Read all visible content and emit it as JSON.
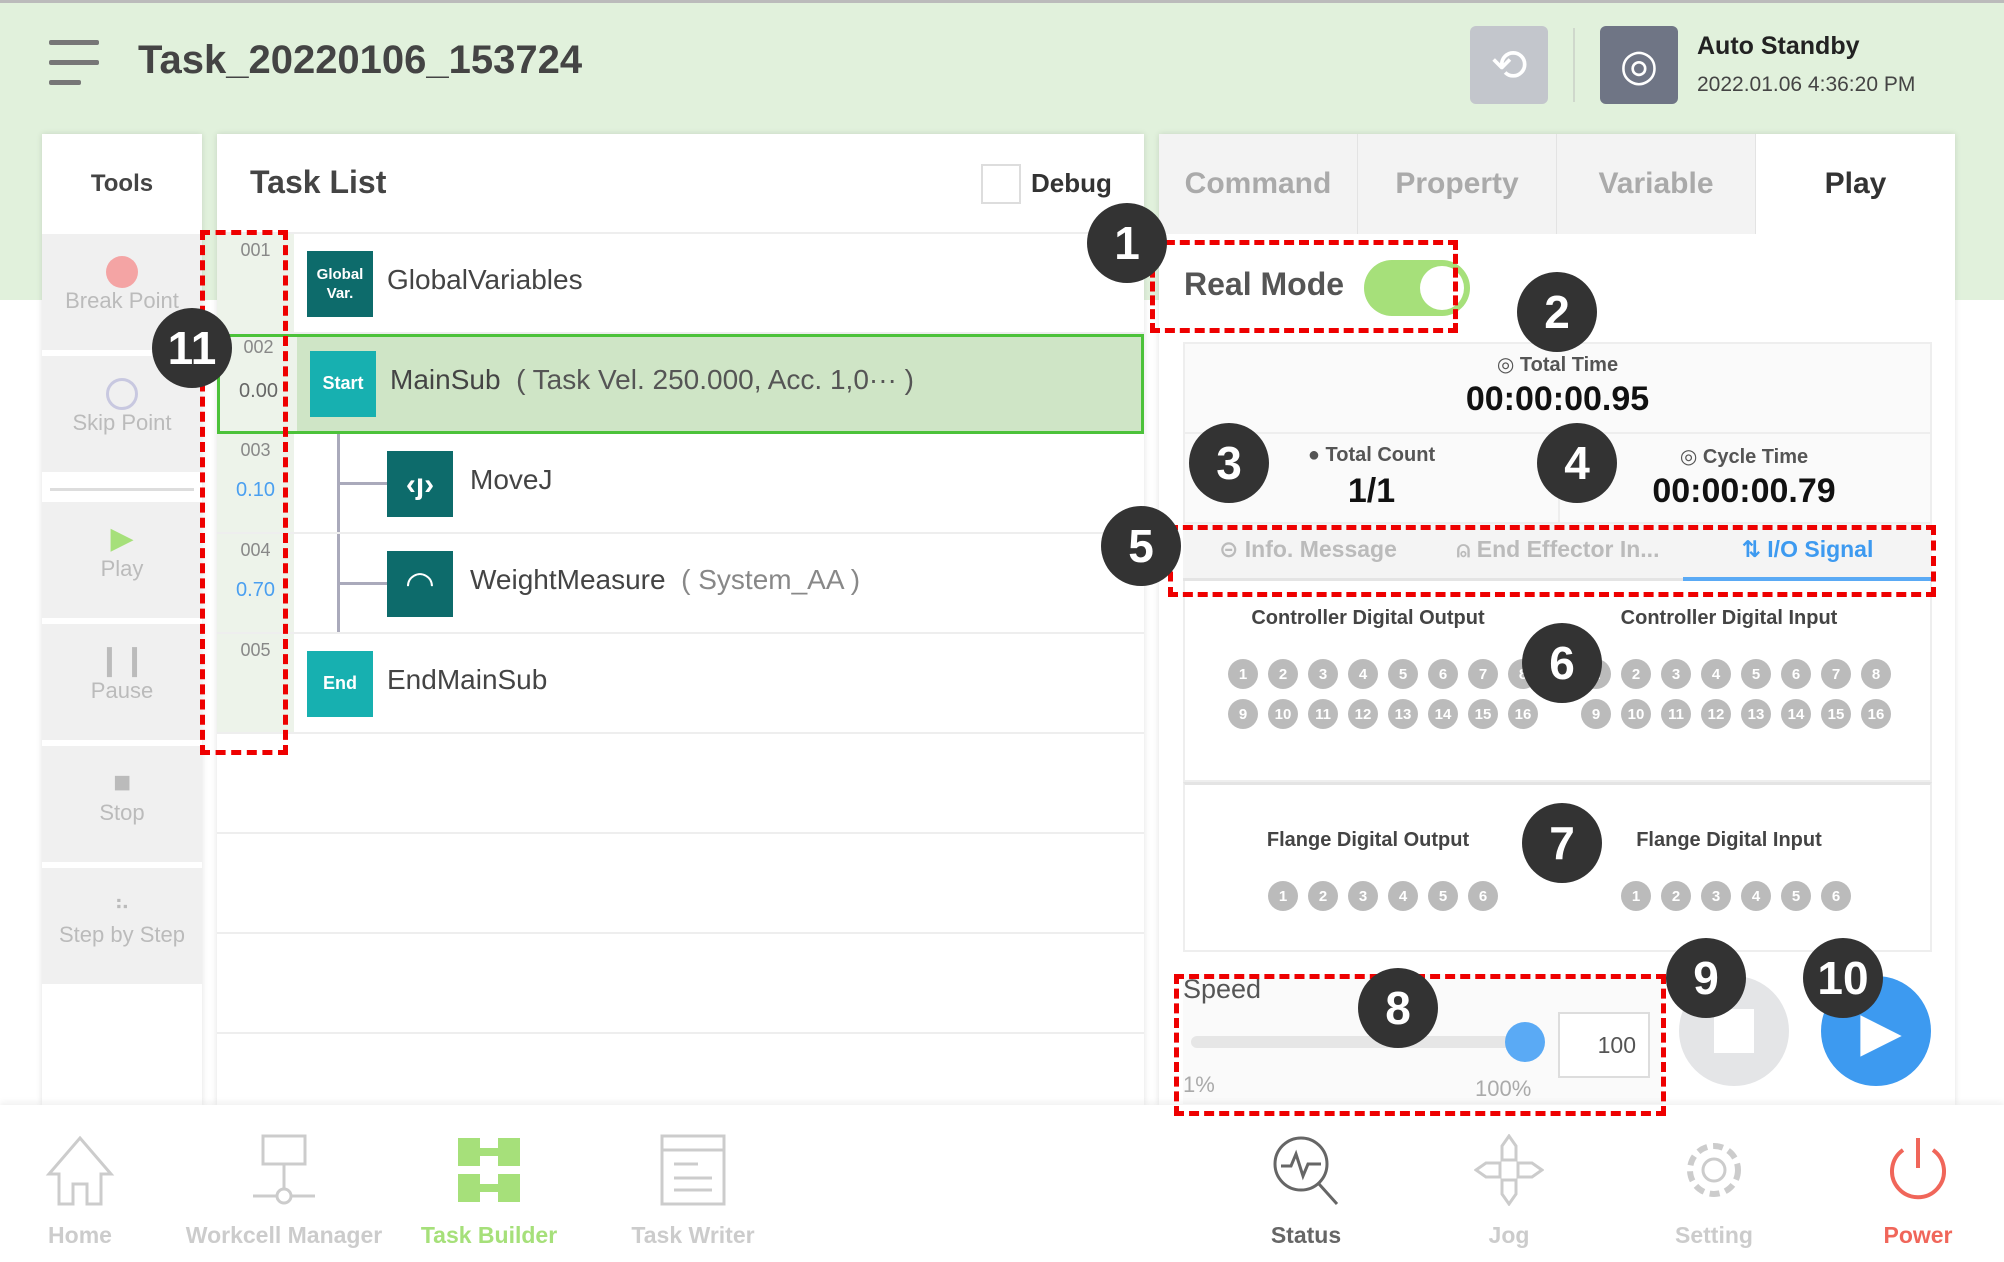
{
  "header": {
    "title": "Task_20220106_153724",
    "status": "Auto Standby",
    "datetime": "2022.01.06 4:36:20 PM"
  },
  "tools": {
    "title": "Tools",
    "items": [
      {
        "label": "Break Point"
      },
      {
        "label": "Skip Point"
      },
      {
        "label": "Play"
      },
      {
        "label": "Pause"
      },
      {
        "label": "Stop"
      },
      {
        "label": "Step by Step"
      }
    ]
  },
  "task_list": {
    "title": "Task List",
    "debug_label": "Debug",
    "debug_checked": false,
    "rows": [
      {
        "line": "001",
        "time": "",
        "icon": "Global Var.",
        "name": "GlobalVariables",
        "detail": ""
      },
      {
        "line": "002",
        "time": "0.00",
        "icon": "Start",
        "name": "MainSub",
        "detail": "( Task Vel. 250.000, Acc. 1,0··· )"
      },
      {
        "line": "003",
        "time": "0.10",
        "icon": "movej-icon",
        "name": "MoveJ",
        "detail": ""
      },
      {
        "line": "004",
        "time": "0.70",
        "icon": "gauge-icon",
        "name": "WeightMeasure",
        "detail": "( System_AA )"
      },
      {
        "line": "005",
        "time": "",
        "icon": "End",
        "name": "EndMainSub",
        "detail": ""
      }
    ]
  },
  "right": {
    "tabs": [
      "Command",
      "Property",
      "Variable",
      "Play"
    ],
    "active_tab": "Play",
    "real_mode_label": "Real Mode",
    "real_mode_on": true,
    "total_time_label": "Total Time",
    "total_time": "00:00:00.95",
    "total_count_label": "Total Count",
    "total_count": "1/1",
    "cycle_time_label": "Cycle Time",
    "cycle_time": "00:00:00.79",
    "subtabs": [
      "Info. Message",
      "End Effector In...",
      "I/O Signal"
    ],
    "active_subtab": "I/O Signal",
    "ctrl_out_label": "Controller Digital Output",
    "ctrl_in_label": "Controller Digital Input",
    "flange_out_label": "Flange Digital Output",
    "flange_in_label": "Flange Digital Input",
    "ctrl_count": 16,
    "flange_count": 6,
    "speed_label": "Speed",
    "speed_min": "1%",
    "speed_max": "100%",
    "speed_value": "100",
    "speed_percent": 100
  },
  "annotations": [
    "1",
    "2",
    "3",
    "4",
    "5",
    "6",
    "7",
    "8",
    "9",
    "10",
    "11"
  ],
  "nav": {
    "left": [
      "Home",
      "Workcell Manager",
      "Task Builder",
      "Task Writer"
    ],
    "right": [
      "Status",
      "Jog",
      "Setting",
      "Power"
    ],
    "active": "Task Builder"
  },
  "colors": {
    "accent_green": "#a6e07a",
    "play_blue": "#3d9af0",
    "power_red": "#f0665a",
    "teal": "#0d6b6b",
    "start_teal": "#17b0b0"
  }
}
